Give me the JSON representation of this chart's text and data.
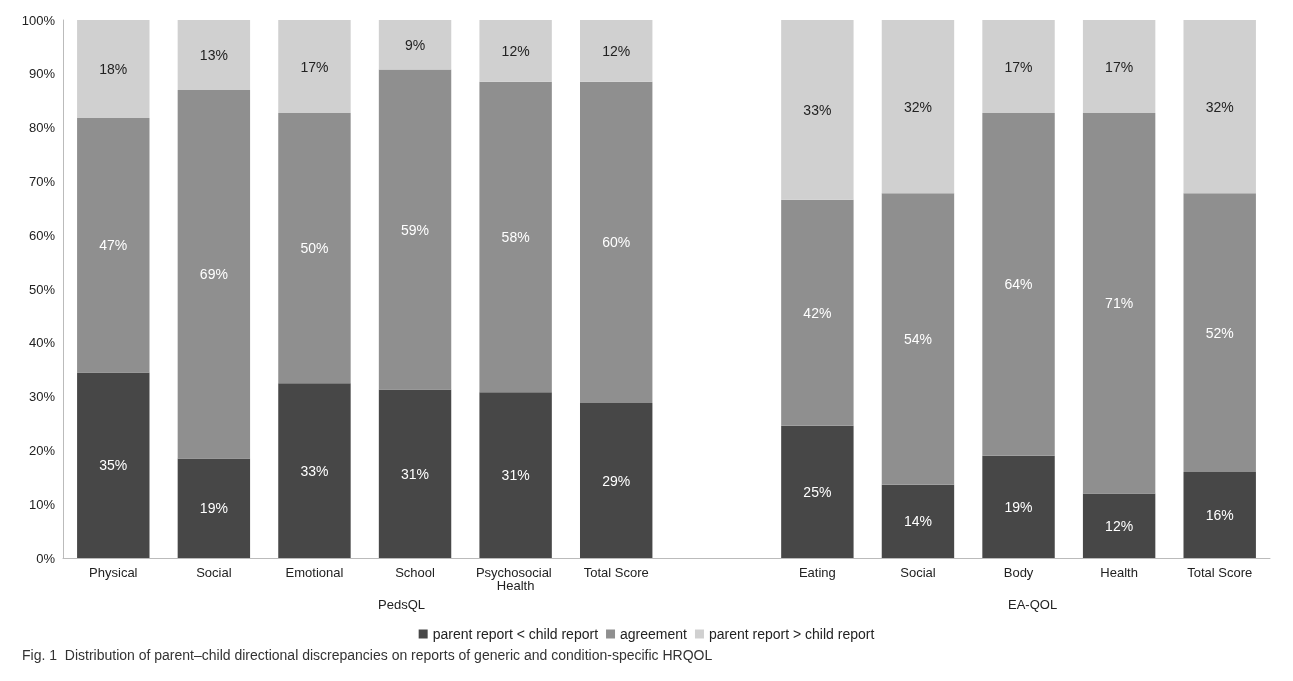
{
  "chart_data": {
    "type": "bar",
    "stacked": true,
    "categories": [
      "Physical",
      "Social",
      "Emotional",
      "School",
      "Psychosocial Health",
      "Total Score",
      null,
      "Eating",
      "Social",
      "Body",
      "Health",
      "Total Score"
    ],
    "series": [
      {
        "name": "parent report < child report",
        "color": "#474747",
        "values": [
          34.5,
          18.5,
          32.5,
          31.3,
          30.8,
          28.8,
          null,
          24.6,
          13.6,
          19,
          12,
          16
        ],
        "value_labels": [
          "35%",
          "19%",
          "33%",
          "31%",
          "31%",
          "29%",
          null,
          "25%",
          "14%",
          "19%",
          "12%",
          "16%"
        ]
      },
      {
        "name": "agreement",
        "color": "#8f8f8f",
        "values": [
          47.3,
          68.5,
          50.2,
          59.5,
          57.7,
          59.7,
          null,
          42,
          54.2,
          63.7,
          70.7,
          51.8
        ],
        "value_labels": [
          "47%",
          "69%",
          "50%",
          "59%",
          "58%",
          "60%",
          null,
          "42%",
          "54%",
          "64%",
          "71%",
          "52%"
        ]
      },
      {
        "name": "parent report > child report",
        "color": "#d0d0d0",
        "values": [
          18.2,
          13,
          17.3,
          9.2,
          11.5,
          11.5,
          null,
          33.4,
          32.2,
          17.3,
          17.3,
          32.2
        ],
        "value_labels": [
          "18%",
          "13%",
          "17%",
          "9%",
          "12%",
          "12%",
          null,
          "33%",
          "32%",
          "17%",
          "17%",
          "32%"
        ]
      }
    ],
    "ylim": [
      0,
      100
    ],
    "yticks": [
      {
        "value": 0,
        "label": "0%"
      },
      {
        "value": 10,
        "label": "10%"
      },
      {
        "value": 20,
        "label": "20%"
      },
      {
        "value": 30,
        "label": "30%"
      },
      {
        "value": 40,
        "label": "40%"
      },
      {
        "value": 50,
        "label": "50%"
      },
      {
        "value": 60,
        "label": "60%"
      },
      {
        "value": 70,
        "label": "70%"
      },
      {
        "value": 80,
        "label": "80%"
      },
      {
        "value": 90,
        "label": "90%"
      },
      {
        "value": 100,
        "label": "100%"
      }
    ],
    "grid": false,
    "legend": "bottom",
    "annotations": [
      "PedsQL",
      "EA-QOL",
      "Fig. 1  Distribution of parent–child directional discrepancies on reports of generic and condition-specific HRQOL"
    ]
  }
}
